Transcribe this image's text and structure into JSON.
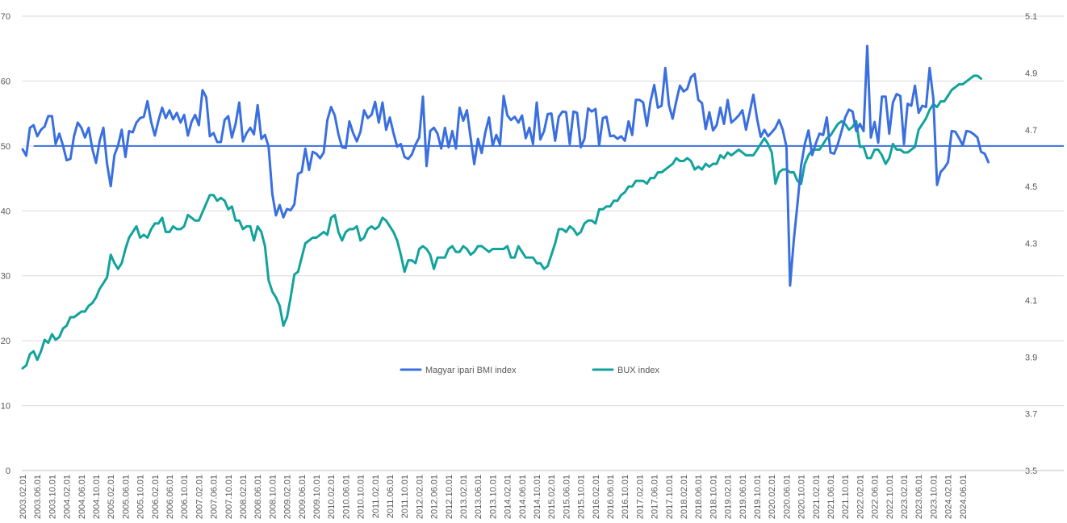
{
  "chart_data": {
    "type": "line",
    "title": "",
    "xlabel": "",
    "ylabel": "",
    "y_left": {
      "min": 0,
      "max": 70,
      "ticks": [
        0,
        10,
        20,
        30,
        40,
        50,
        60,
        70
      ],
      "tick_labels": [
        "0",
        "10",
        "20",
        "30",
        "40",
        "50",
        "60",
        "70"
      ]
    },
    "y_right": {
      "min": 3.5,
      "max": 5.1,
      "ticks": [
        3.5,
        3.7,
        3.9,
        4.1,
        4.3,
        4.5,
        4.7,
        4.9,
        5.1
      ],
      "tick_labels": [
        "3.5",
        "3.7",
        "3.9",
        "4.1",
        "4.3",
        "4.5",
        "4.7",
        "4.9",
        "5.1"
      ]
    },
    "start": "2003.02",
    "end": "2024.08",
    "x_tick_labels": [
      "2003.02.01",
      "2003.06.01",
      "2003.10.01",
      "2004.02.01",
      "2004.06.01",
      "2004.10.01",
      "2005.02.01",
      "2005.06.01",
      "2005.10.01",
      "2006.02.01",
      "2006.06.01",
      "2006.10.01",
      "2007.02.01",
      "2007.06.01",
      "2007.10.01",
      "2008.02.01",
      "2008.06.01",
      "2008.10.01",
      "2009.02.01",
      "2009.06.01",
      "2009.10.01",
      "2010.02.01",
      "2010.06.01",
      "2010.10.01",
      "2011.02.01",
      "2011.06.01",
      "2011.10.01",
      "2012.02.01",
      "2012.06.01",
      "2012.10.01",
      "2013.02.01",
      "2013.06.01",
      "2013.10.01",
      "2014.02.01",
      "2014.06.01",
      "2014.10.01",
      "2015.02.01",
      "2015.06.01",
      "2015.10.01",
      "2016.02.01",
      "2016.06.01",
      "2016.10.01",
      "2017.02.01",
      "2017.06.01",
      "2017.10.01",
      "2018.02.01",
      "2018.06.01",
      "2018.10.01",
      "2019.02.01",
      "2019.06.01",
      "2019.10.01",
      "2020.02.01",
      "2020.06.01",
      "2020.10.01",
      "2021.02.01",
      "2021.06.01",
      "2021.10.01",
      "2022.02.01",
      "2022.06.01",
      "2022.10.01",
      "2023.02.01",
      "2023.06.01",
      "2023.10.01",
      "2024.02.01",
      "2024.06.01"
    ],
    "grid": "horizontal",
    "legend_position": "center",
    "reference_line": {
      "axis": "left",
      "value": 50,
      "color": "#3a6fe0",
      "from": "2003.05"
    },
    "series": [
      {
        "name": "Magyar ipari BMI index",
        "axis": "left",
        "color": "#3a6fe0",
        "values": [
          49.5,
          48.5,
          52.8,
          53.2,
          51.5,
          52.5,
          53.0,
          54.6,
          54.6,
          50.3,
          51.9,
          50.1,
          47.8,
          48.0,
          51.5,
          53.6,
          52.8,
          51.3,
          52.8,
          49.5,
          47.4,
          50.8,
          52.8,
          47.3,
          43.8,
          48.6,
          50.1,
          52.5,
          48.3,
          52.3,
          52.1,
          53.6,
          54.3,
          54.5,
          56.9,
          53.7,
          51.6,
          53.9,
          55.9,
          54.3,
          55.5,
          54.1,
          55.1,
          53.6,
          54.8,
          51.6,
          53.7,
          54.8,
          53.2,
          58.6,
          57.5,
          51.5,
          52.0,
          50.6,
          50.6,
          54.0,
          54.6,
          51.3,
          53.4,
          56.7,
          50.7,
          52.0,
          52.8,
          51.8,
          56.3,
          51.1,
          51.7,
          49.9,
          42.6,
          39.3,
          40.9,
          39.0,
          40.3,
          40.1,
          41.0,
          45.7,
          46.0,
          49.6,
          46.3,
          49.1,
          48.8,
          48.1,
          49.0,
          54.0,
          56.0,
          54.7,
          51.8,
          49.8,
          49.7,
          53.8,
          52.0,
          50.7,
          52.2,
          55.5,
          54.3,
          54.8,
          56.8,
          53.6,
          56.7,
          52.5,
          54.4,
          52.0,
          49.9,
          50.3,
          48.3,
          48.0,
          48.7,
          50.2,
          51.3,
          57.6,
          46.9,
          52.3,
          52.8,
          51.9,
          49.6,
          52.8,
          49.8,
          52.3,
          49.6,
          55.9,
          53.9,
          55.5,
          51.3,
          47.2,
          51.1,
          48.9,
          52.1,
          54.4,
          50.1,
          51.7,
          50.2,
          57.7,
          54.7,
          54.0,
          54.5,
          53.6,
          54.7,
          51.2,
          52.8,
          50.3,
          56.7,
          51.0,
          52.3,
          54.9,
          55.0,
          50.8,
          54.5,
          55.3,
          55.2,
          50.3,
          55.3,
          55.1,
          49.8,
          51.1,
          55.8,
          55.3,
          55.7,
          50.1,
          54.3,
          54.5,
          51.5,
          51.6,
          51.1,
          51.5,
          50.8,
          53.8,
          51.7,
          57.1,
          57.1,
          56.7,
          53.1,
          56.9,
          59.4,
          55.9,
          56.2,
          62.0,
          56.3,
          54.2,
          56.9,
          59.3,
          58.4,
          58.8,
          60.6,
          61.1,
          57.1,
          56.6,
          52.6,
          55.2,
          52.4,
          53.2,
          55.9,
          53.4,
          57.1,
          53.6,
          54.1,
          54.7,
          55.5,
          52.5,
          55.2,
          57.9,
          54.2,
          51.4,
          52.5,
          51.5,
          52.1,
          52.8,
          54.0,
          52.5,
          49.9,
          28.5,
          35.5,
          41.0,
          47.0,
          50.3,
          52.4,
          48.6,
          50.4,
          51.9,
          51.7,
          54.4,
          49.0,
          48.8,
          50.3,
          52.3,
          54.4,
          55.6,
          55.3,
          52.3,
          53.4,
          52.3,
          65.4,
          51.3,
          53.7,
          50.5,
          57.6,
          57.6,
          51.9,
          56.7,
          58.0,
          57.7,
          50.3,
          56.5,
          56.2,
          59.3,
          55.1,
          56.2,
          56.0,
          62.0,
          57.3,
          44.0,
          46.0,
          46.6,
          47.5,
          52.3,
          52.2,
          51.2,
          50.1,
          52.3,
          52.2,
          51.8,
          51.3,
          49.1,
          48.8,
          47.5
        ]
      },
      {
        "name": "BUX index",
        "axis": "right",
        "color": "#12a39c",
        "values": [
          3.86,
          3.87,
          3.91,
          3.92,
          3.89,
          3.92,
          3.96,
          3.95,
          3.98,
          3.96,
          3.97,
          4.0,
          4.01,
          4.04,
          4.04,
          4.05,
          4.06,
          4.06,
          4.08,
          4.09,
          4.11,
          4.14,
          4.16,
          4.18,
          4.26,
          4.23,
          4.21,
          4.23,
          4.28,
          4.32,
          4.34,
          4.36,
          4.32,
          4.33,
          4.32,
          4.35,
          4.37,
          4.37,
          4.39,
          4.34,
          4.34,
          4.36,
          4.35,
          4.35,
          4.36,
          4.4,
          4.39,
          4.38,
          4.38,
          4.41,
          4.44,
          4.47,
          4.47,
          4.45,
          4.46,
          4.45,
          4.42,
          4.43,
          4.38,
          4.38,
          4.35,
          4.36,
          4.36,
          4.31,
          4.36,
          4.34,
          4.29,
          4.17,
          4.13,
          4.11,
          4.08,
          4.01,
          4.04,
          4.11,
          4.19,
          4.2,
          4.25,
          4.3,
          4.31,
          4.32,
          4.32,
          4.33,
          4.34,
          4.33,
          4.39,
          4.4,
          4.34,
          4.31,
          4.34,
          4.35,
          4.35,
          4.36,
          4.31,
          4.32,
          4.35,
          4.36,
          4.35,
          4.36,
          4.39,
          4.38,
          4.36,
          4.34,
          4.31,
          4.26,
          4.2,
          4.24,
          4.24,
          4.23,
          4.28,
          4.29,
          4.28,
          4.26,
          4.21,
          4.25,
          4.25,
          4.25,
          4.28,
          4.29,
          4.27,
          4.27,
          4.29,
          4.28,
          4.26,
          4.27,
          4.29,
          4.29,
          4.28,
          4.27,
          4.28,
          4.28,
          4.28,
          4.28,
          4.29,
          4.25,
          4.25,
          4.29,
          4.27,
          4.25,
          4.25,
          4.25,
          4.23,
          4.23,
          4.21,
          4.22,
          4.26,
          4.3,
          4.35,
          4.35,
          4.34,
          4.36,
          4.35,
          4.33,
          4.34,
          4.37,
          4.38,
          4.38,
          4.37,
          4.42,
          4.42,
          4.43,
          4.43,
          4.45,
          4.45,
          4.47,
          4.48,
          4.5,
          4.5,
          4.52,
          4.52,
          4.52,
          4.51,
          4.53,
          4.53,
          4.55,
          4.55,
          4.56,
          4.57,
          4.58,
          4.6,
          4.59,
          4.59,
          4.6,
          4.59,
          4.56,
          4.57,
          4.56,
          4.58,
          4.57,
          4.58,
          4.58,
          4.61,
          4.6,
          4.62,
          4.61,
          4.62,
          4.63,
          4.62,
          4.61,
          4.61,
          4.61,
          4.63,
          4.65,
          4.67,
          4.65,
          4.62,
          4.51,
          4.55,
          4.56,
          4.56,
          4.55,
          4.55,
          4.52,
          4.51,
          4.58,
          4.61,
          4.63,
          4.63,
          4.63,
          4.65,
          4.67,
          4.68,
          4.7,
          4.72,
          4.73,
          4.72,
          4.7,
          4.71,
          4.73,
          4.64,
          4.64,
          4.6,
          4.6,
          4.63,
          4.63,
          4.61,
          4.58,
          4.6,
          4.65,
          4.63,
          4.63,
          4.62,
          4.62,
          4.63,
          4.64,
          4.7,
          4.72,
          4.74,
          4.77,
          4.79,
          4.78,
          4.8,
          4.8,
          4.82,
          4.84,
          4.85,
          4.86,
          4.86,
          4.87,
          4.88,
          4.89,
          4.89,
          4.88
        ]
      }
    ]
  }
}
